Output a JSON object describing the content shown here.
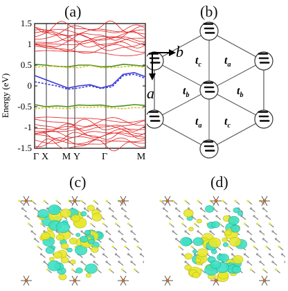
{
  "labels": {
    "a": "(a)",
    "b": "(b)",
    "c": "(c)",
    "d": "(d)"
  },
  "band": {
    "ylabel": "Energy (eV)",
    "yticks": [
      "1.5",
      "1",
      "0.5",
      "0",
      "-0.5",
      "-1",
      "-1.5"
    ],
    "kpoints": [
      "Γ",
      "X",
      "M",
      "Y",
      "Γ",
      "M"
    ],
    "colors": {
      "red": "#e31a1c",
      "green": "#4a8f1f",
      "yellow": "#d8c12a",
      "purple": "#3b3ad6"
    }
  },
  "chart_data": {
    "type": "line",
    "title": "",
    "xlabel": "",
    "ylabel": "Energy (eV)",
    "ylim": [
      -1.5,
      1.5
    ],
    "x_ticks": [
      "Γ",
      "X",
      "M",
      "Y",
      "Γ",
      "M"
    ],
    "series": [
      {
        "values": [
          0.52,
          0.5,
          0.47,
          0.46,
          0.5,
          0.5,
          0.46,
          0.47,
          0.52,
          0.5,
          0.47
        ]
      },
      {
        "values": [
          0.45,
          0.47,
          0.48,
          0.44,
          0.44,
          0.49,
          0.44,
          0.44,
          0.46,
          0.48,
          0.45
        ]
      },
      {
        "values": [
          0.25,
          0.15,
          0.05,
          -0.05,
          0.0,
          0.03,
          -0.05,
          0.02,
          0.28,
          0.32,
          0.22
        ]
      },
      {
        "values": [
          0.1,
          0.05,
          0.0,
          -0.08,
          -0.05,
          0.0,
          -0.06,
          -0.02,
          0.25,
          0.28,
          0.18
        ]
      },
      {
        "values": [
          -0.45,
          -0.5,
          -0.48,
          -0.5,
          -0.46,
          -0.47,
          -0.46,
          -0.5,
          -0.48,
          -0.45,
          -0.47
        ]
      },
      {
        "values": [
          -0.55,
          -0.52,
          -0.53,
          -0.55,
          -0.51,
          -0.52,
          -0.5,
          -0.53,
          -0.55,
          -0.52,
          -0.53
        ]
      }
    ]
  },
  "lattice": {
    "axis_a": "a",
    "axis_b": "b",
    "t_labels": {
      "c_top": "t",
      "c_top_sub": "c",
      "a_top": "t",
      "a_top_sub": "a",
      "b_left": "t",
      "b_left_sub": "b",
      "b_right": "t",
      "b_right_sub": "b",
      "a_bot": "t",
      "a_bot_sub": "a",
      "c_bot": "t",
      "c_bot_sub": "c"
    }
  }
}
